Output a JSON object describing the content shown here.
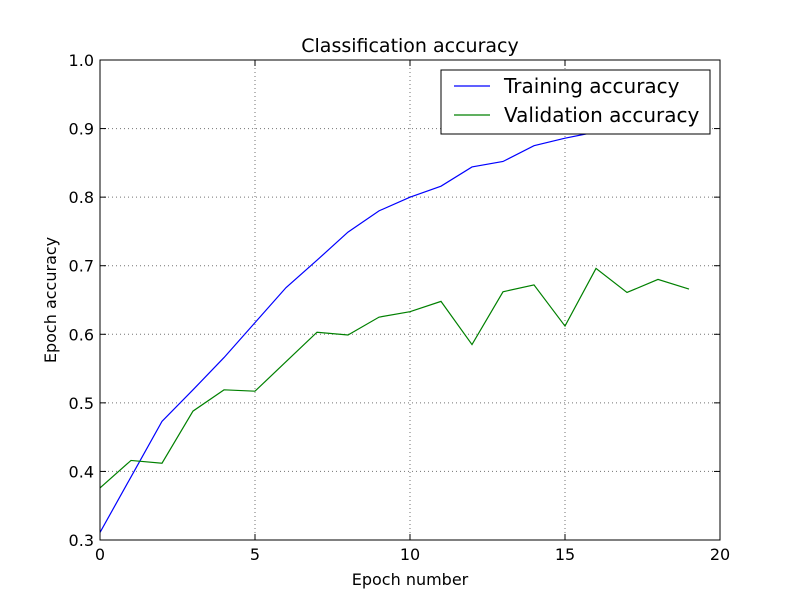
{
  "chart_data": {
    "type": "line",
    "title": "Classification accuracy",
    "xlabel": "Epoch number",
    "ylabel": "Epoch accuracy",
    "xlim": [
      0,
      20
    ],
    "ylim": [
      0.3,
      1.0
    ],
    "xticks": [
      0,
      5,
      10,
      15,
      20
    ],
    "yticks": [
      0.3,
      0.4,
      0.5,
      0.6,
      0.7,
      0.8,
      0.9,
      1.0
    ],
    "xtick_labels": [
      "0",
      "5",
      "10",
      "15",
      "20"
    ],
    "ytick_labels": [
      "0.3",
      "0.4",
      "0.5",
      "0.6",
      "0.7",
      "0.8",
      "0.9",
      "1.0"
    ],
    "grid": true,
    "legend_position": "top-right",
    "x": [
      0,
      1,
      2,
      3,
      4,
      5,
      6,
      7,
      8,
      9,
      10,
      11,
      12,
      13,
      14,
      15,
      16,
      17,
      18,
      19
    ],
    "series": [
      {
        "name": "Training accuracy",
        "color": "#0000ff",
        "values": [
          0.311,
          0.392,
          0.473,
          0.519,
          0.566,
          0.617,
          0.668,
          0.708,
          0.749,
          0.78,
          0.8,
          0.816,
          0.844,
          0.852,
          0.875,
          0.886,
          0.895,
          0.903,
          0.91,
          0.918
        ]
      },
      {
        "name": "Validation accuracy",
        "color": "#008000",
        "values": [
          0.376,
          0.416,
          0.412,
          0.488,
          0.519,
          0.517,
          0.56,
          0.603,
          0.599,
          0.625,
          0.633,
          0.648,
          0.585,
          0.662,
          0.672,
          0.612,
          0.696,
          0.661,
          0.68,
          0.666
        ]
      }
    ]
  }
}
